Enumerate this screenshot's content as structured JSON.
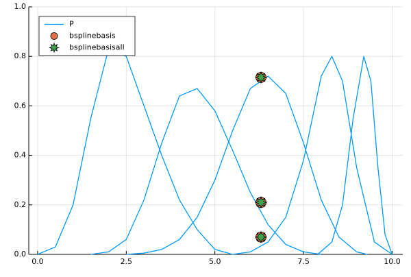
{
  "chart_data": {
    "type": "line",
    "xlim": [
      -0.25,
      10.3
    ],
    "ylim": [
      0,
      1
    ],
    "xticks": [
      {
        "value": 0,
        "label": "0.0"
      },
      {
        "value": 2.5,
        "label": "2.5"
      },
      {
        "value": 5,
        "label": "5.0"
      },
      {
        "value": 7.5,
        "label": "7.5"
      },
      {
        "value": 10,
        "label": "10.0"
      }
    ],
    "yticks": [
      {
        "value": 0,
        "label": "0.0"
      },
      0.2,
      0.4,
      0.6,
      0.8,
      {
        "value": 1,
        "label": "1.0"
      }
    ],
    "grid": true,
    "legend": "top-left",
    "series": [
      {
        "name": "P",
        "type": "line",
        "color": "#009af9",
        "x": [
          0,
          0.5,
          1,
          1.5,
          2,
          2.5,
          3,
          3.5,
          4,
          4.5,
          5,
          5.5,
          null,
          1.5,
          2,
          2.5,
          3,
          3.5,
          4,
          4.5,
          5,
          5.5,
          6,
          6.5,
          7,
          7.5,
          8,
          null,
          2.5,
          3,
          3.5,
          4,
          4.5,
          5,
          5.5,
          6,
          6.5,
          7,
          7.5,
          8,
          8.5,
          9,
          9.3,
          null,
          5.5,
          6,
          6.5,
          7,
          7.5,
          8,
          8.3,
          8.6,
          9,
          9.5,
          10,
          null,
          7.9,
          8.3,
          8.6,
          8.9,
          9.2,
          9.4,
          9.6,
          9.8,
          10
        ],
        "values": [
          0,
          0.03,
          0.2,
          0.55,
          0.83,
          0.8,
          0.6,
          0.4,
          0.22,
          0.1,
          0.02,
          0,
          null,
          0,
          0.01,
          0.06,
          0.22,
          0.45,
          0.64,
          0.67,
          0.58,
          0.42,
          0.25,
          0.12,
          0.04,
          0.01,
          0,
          null,
          0,
          0.005,
          0.02,
          0.06,
          0.15,
          0.3,
          0.5,
          0.67,
          0.72,
          0.65,
          0.45,
          0.22,
          0.07,
          0.01,
          0,
          null,
          0,
          0.01,
          0.05,
          0.15,
          0.38,
          0.72,
          0.8,
          0.7,
          0.35,
          0.05,
          0,
          null,
          0,
          0.05,
          0.2,
          0.55,
          0.8,
          0.7,
          0.35,
          0.08,
          0
        ]
      },
      {
        "name": "bsplinebasis",
        "type": "scatter",
        "marker": "circle",
        "color": "#e26f46",
        "x": [
          6.3,
          6.3,
          6.3
        ],
        "values": [
          0.715,
          0.21,
          0.07
        ]
      },
      {
        "name": "bsplinebasisall",
        "type": "scatter",
        "marker": "star",
        "color": "#3da44d",
        "x": [
          6.3,
          6.3,
          6.3
        ],
        "values": [
          0.715,
          0.21,
          0.07
        ]
      }
    ]
  }
}
